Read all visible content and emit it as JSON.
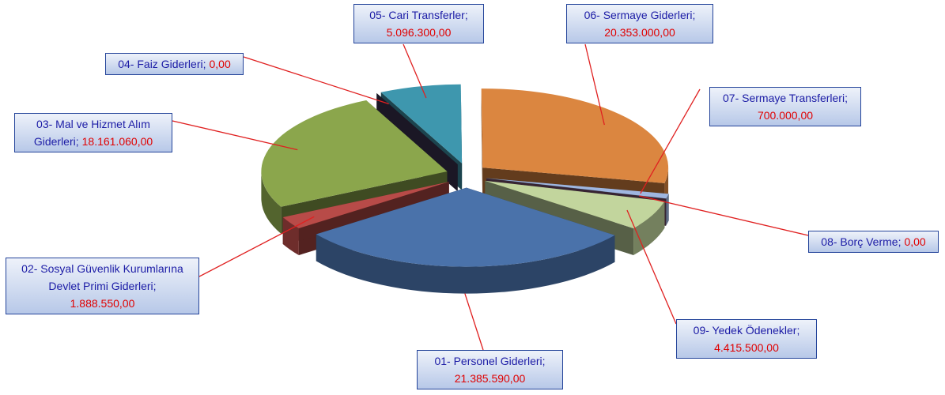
{
  "chart_data": {
    "type": "pie3d",
    "categories": [
      "01- Personel Giderleri",
      "02- Sosyal Güvenlik Kurumlarına Devlet Primi Giderleri",
      "03- Mal ve Hizmet Alım Giderleri",
      "04- Faiz Giderleri",
      "05- Cari Transferler",
      "06- Sermaye Giderleri",
      "07- Sermaye Transferleri",
      "08- Borç Verme",
      "09- Yedek Ödenekler"
    ],
    "values": [
      21385590,
      1888550,
      18161060,
      0,
      5096300,
      20353000,
      700000,
      0,
      4415500
    ],
    "value_labels": [
      "21.385.590,00",
      "1.888.550,00",
      "18.161.060,00",
      "0,00",
      "5.096.300,00",
      "20.353.000,00",
      "700.000,00",
      "0,00",
      "4.415.500,00"
    ],
    "label_separator": ";",
    "colors": [
      "#4a72aa",
      "#b84b48",
      "#8ba64c",
      "#3b3452",
      "#3e97ae",
      "#db8640",
      "#9fb6e0",
      "#7a4f6e",
      "#c2d59d"
    ]
  }
}
